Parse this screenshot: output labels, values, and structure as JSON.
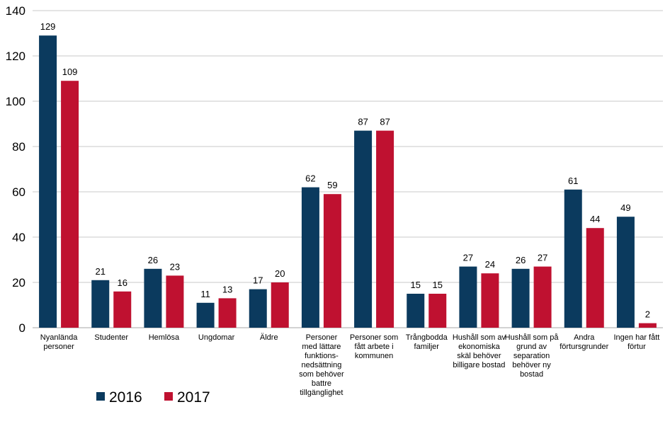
{
  "chart_data": {
    "type": "bar",
    "categories": [
      [
        "Nyanlända",
        "personer"
      ],
      [
        "Studenter"
      ],
      [
        "Hemlösa"
      ],
      [
        "Ungdomar"
      ],
      [
        "Äldre"
      ],
      [
        "Personer",
        "med lättare",
        "funktions-",
        "nedsättning",
        "som behöver",
        "battre",
        "tillgänglighet"
      ],
      [
        "Personer som",
        "fått arbete i",
        "kommunen"
      ],
      [
        "Trångbodda",
        "familjer"
      ],
      [
        "Hushåll som av",
        "ekonomiska",
        "skäl behöver",
        "billigare bostad"
      ],
      [
        "Hushåll som på",
        "grund av",
        "separation",
        "behöver ny",
        "bostad"
      ],
      [
        "Andra",
        "förtursgrunder"
      ],
      [
        "Ingen har fått",
        "förtur"
      ]
    ],
    "series": [
      {
        "name": "2016",
        "color": "#0b3a5e",
        "values": [
          129,
          21,
          26,
          11,
          17,
          62,
          87,
          15,
          27,
          26,
          61,
          49
        ]
      },
      {
        "name": "2017",
        "color": "#bf1130",
        "values": [
          109,
          16,
          23,
          13,
          20,
          59,
          87,
          15,
          24,
          27,
          44,
          2
        ]
      }
    ],
    "yticks": [
      "0",
      "20",
      "40",
      "60",
      "80",
      "100",
      "120",
      "140"
    ],
    "ylim": [
      0,
      140
    ],
    "grid": true,
    "legend_position": "bottom-left",
    "title": "",
    "xlabel": "",
    "ylabel": ""
  }
}
